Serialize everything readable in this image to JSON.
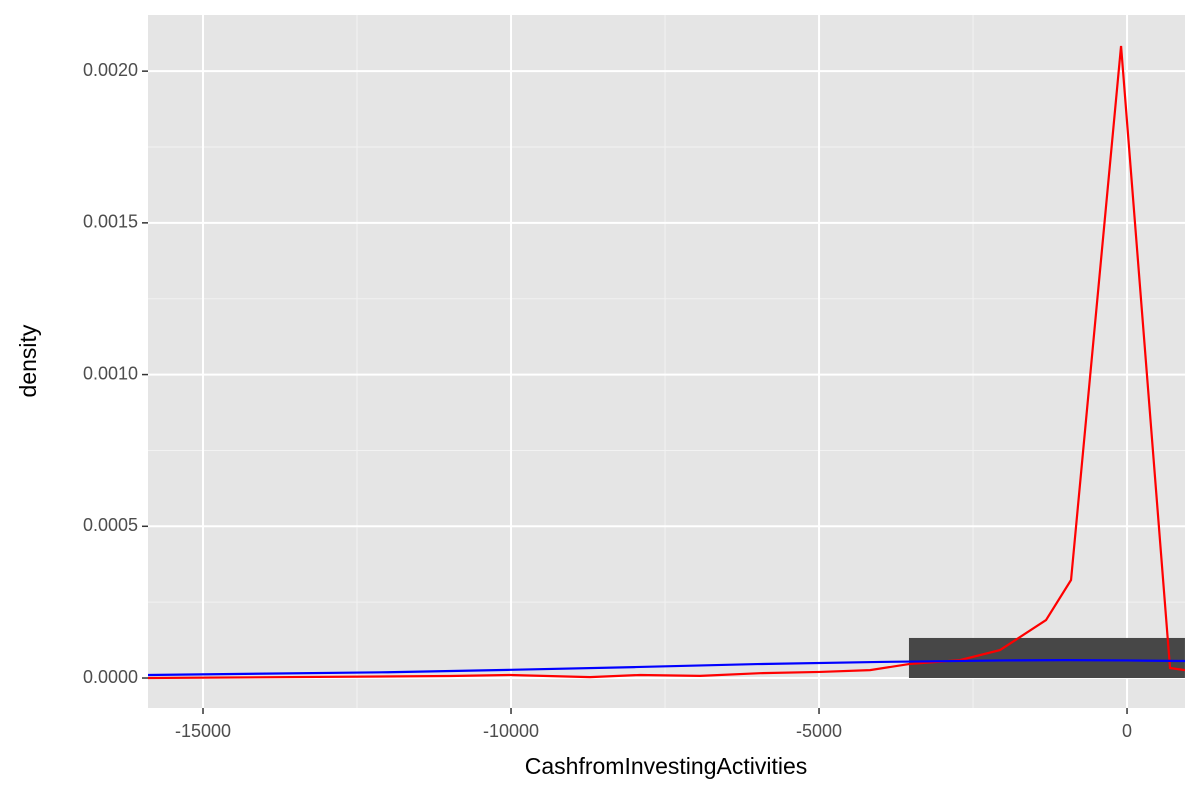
{
  "chart_data": {
    "type": "histogram",
    "x_label": "CashfromInvestingActivities",
    "y_label": "density",
    "bins": [
      -3540,
      940
    ],
    "counts": [
      0.000132
    ],
    "color": "#474747",
    "lines": [
      {
        "color": "#ff0000",
        "x": [
          -15893,
          -10990,
          -10016,
          -8718,
          -7906,
          -6932,
          -5958,
          -4984,
          -4172,
          -3539,
          -2711,
          -2062,
          -1315,
          -909,
          -97,
          698,
          941
        ],
        "values": [
          0,
          6.6e-06,
          1e-05,
          3e-06,
          1e-05,
          7e-06,
          1.6e-05,
          2e-05,
          2.6e-05,
          4.6e-05,
          5.9e-05,
          9.2e-05,
          0.000191,
          0.000323,
          0.002083,
          3.3e-05,
          2.6e-05
        ]
      },
      {
        "color": "#0000ff",
        "x": [
          -15893,
          -12000,
          -10000,
          -8000,
          -6000,
          -4000,
          -2000,
          -1000,
          0,
          941
        ],
        "values": [
          1e-05,
          1.9e-05,
          2.7e-05,
          3.6e-05,
          4.6e-05,
          5.3e-05,
          5.8e-05,
          5.9e-05,
          5.8e-05,
          5.6e-05
        ]
      }
    ],
    "xlim": [
      -15893,
      941
    ],
    "ylim": [
      -9.88e-05,
      0.002185
    ],
    "xticks": [
      -15000,
      -10000,
      -5000,
      0
    ],
    "yticks": [
      {
        "value": 0,
        "label": "0.0000"
      },
      {
        "value": 0.0005,
        "label": "0.0005"
      },
      {
        "value": 0.001,
        "label": "0.0010"
      },
      {
        "value": 0.0015,
        "label": "0.0015"
      },
      {
        "value": 0.002,
        "label": "0.0020"
      }
    ],
    "grid": true
  }
}
